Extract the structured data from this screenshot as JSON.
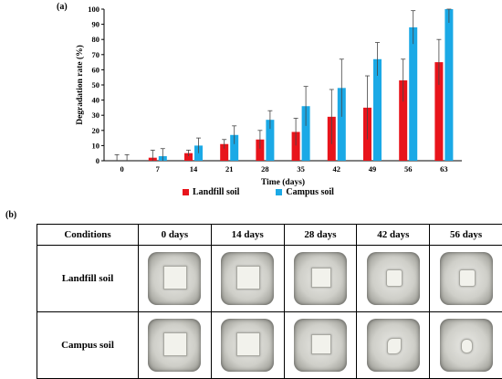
{
  "panel_a_label": "(a)",
  "panel_b_label": "(b)",
  "chart_data": {
    "type": "bar",
    "xlabel": "Time (days)",
    "ylabel": "Degradation rate (%)",
    "ylim": [
      0,
      100
    ],
    "yticks": [
      0,
      10,
      20,
      30,
      40,
      50,
      60,
      70,
      80,
      90,
      100
    ],
    "categories": [
      "0",
      "7",
      "14",
      "21",
      "28",
      "35",
      "42",
      "49",
      "56",
      "63"
    ],
    "legend_position": "bottom",
    "series": [
      {
        "name": "Landfill soil",
        "color": "#e8141b",
        "values": [
          0,
          2,
          5,
          11,
          14,
          19,
          29,
          35,
          53,
          65
        ],
        "errors": [
          4,
          5,
          2,
          3,
          6,
          9,
          18,
          21,
          14,
          15
        ]
      },
      {
        "name": "Campus soil",
        "color": "#1ba9e6",
        "values": [
          0,
          3,
          10,
          17,
          27,
          36,
          48,
          67,
          88,
          100
        ],
        "errors": [
          4,
          5,
          5,
          6,
          6,
          13,
          19,
          11,
          11,
          9
        ]
      }
    ]
  },
  "table": {
    "header": [
      "Conditions",
      "0 days",
      "14 days",
      "28 days",
      "42 days",
      "56 days"
    ],
    "rows": [
      {
        "label": "Landfill soil"
      },
      {
        "label": "Campus soil"
      }
    ]
  }
}
